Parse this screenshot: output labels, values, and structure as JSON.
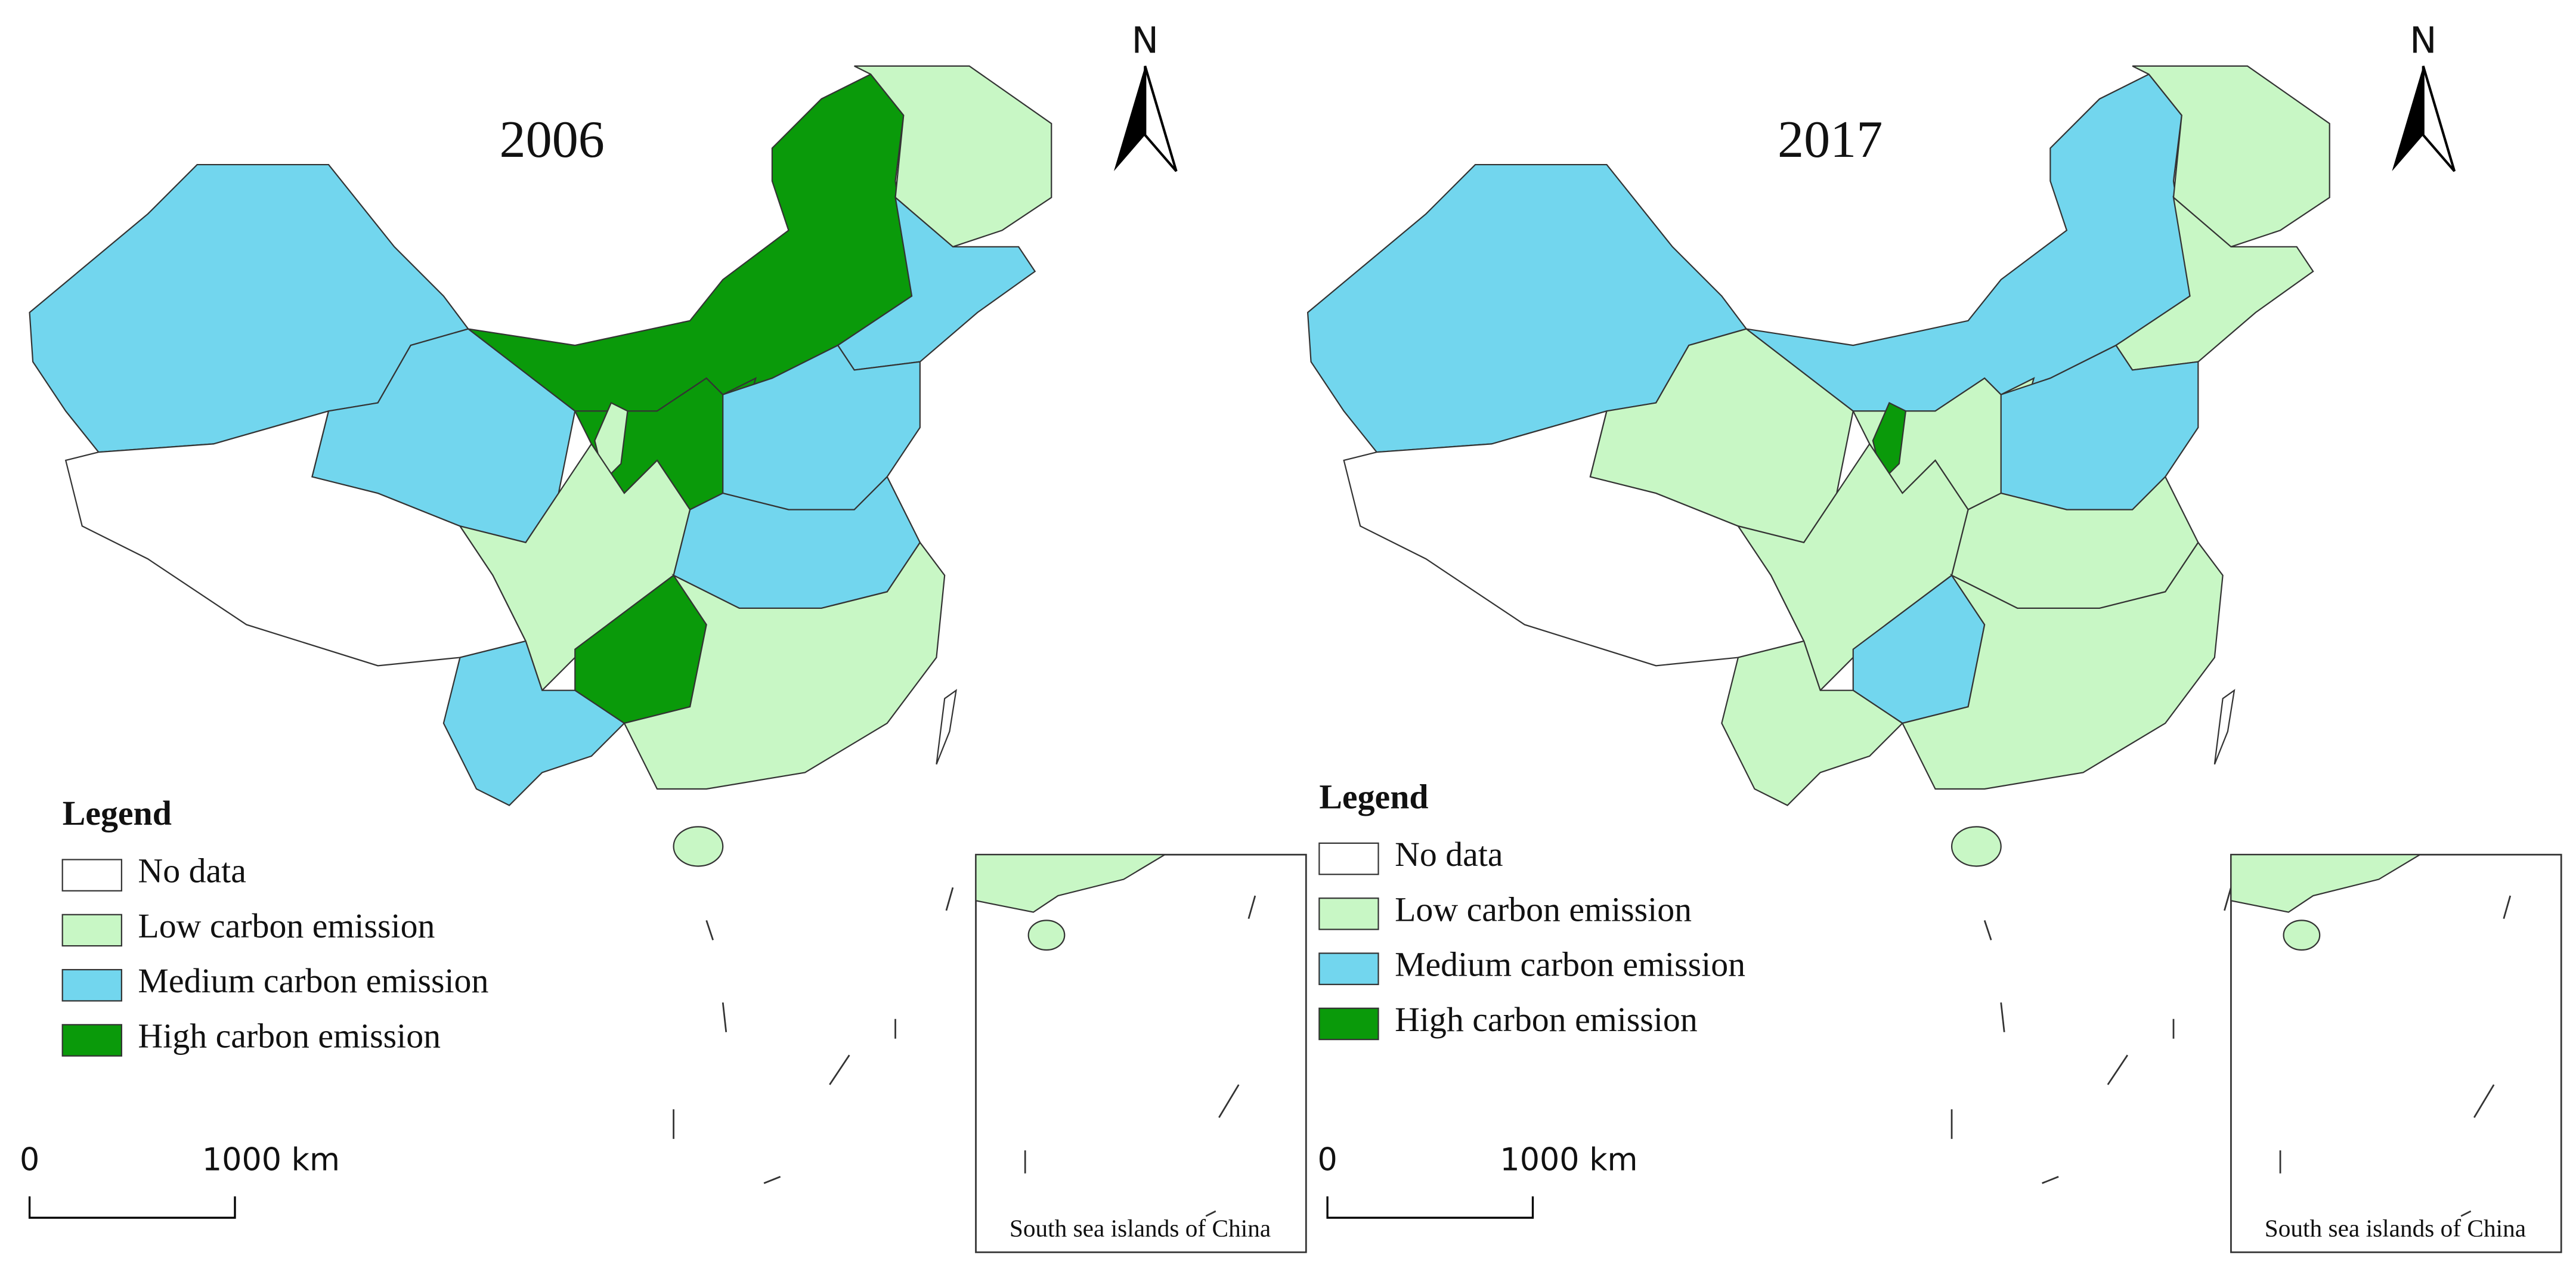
{
  "panels": [
    {
      "title": "2006",
      "legend": {
        "title": "Legend",
        "items": [
          {
            "label": "No data",
            "color": "#ffffff"
          },
          {
            "label": "Low carbon emission",
            "color": "#c8f7c5"
          },
          {
            "label": "Medium carbon emission",
            "color": "#72d6ee"
          },
          {
            "label": "High carbon emission",
            "color": "#0a9a0a"
          }
        ]
      },
      "scale": {
        "start": "0",
        "end": "1000 km"
      },
      "north": "N",
      "inset_label": "South sea islands of China"
    },
    {
      "title": "2017",
      "legend": {
        "title": "Legend",
        "items": [
          {
            "label": "No data",
            "color": "#ffffff"
          },
          {
            "label": "Low carbon emission",
            "color": "#c8f7c5"
          },
          {
            "label": "Medium carbon emission",
            "color": "#72d6ee"
          },
          {
            "label": "High carbon emission",
            "color": "#0a9a0a"
          }
        ]
      },
      "scale": {
        "start": "0",
        "end": "1000 km"
      },
      "north": "N",
      "inset_label": "South sea islands of China"
    }
  ]
}
